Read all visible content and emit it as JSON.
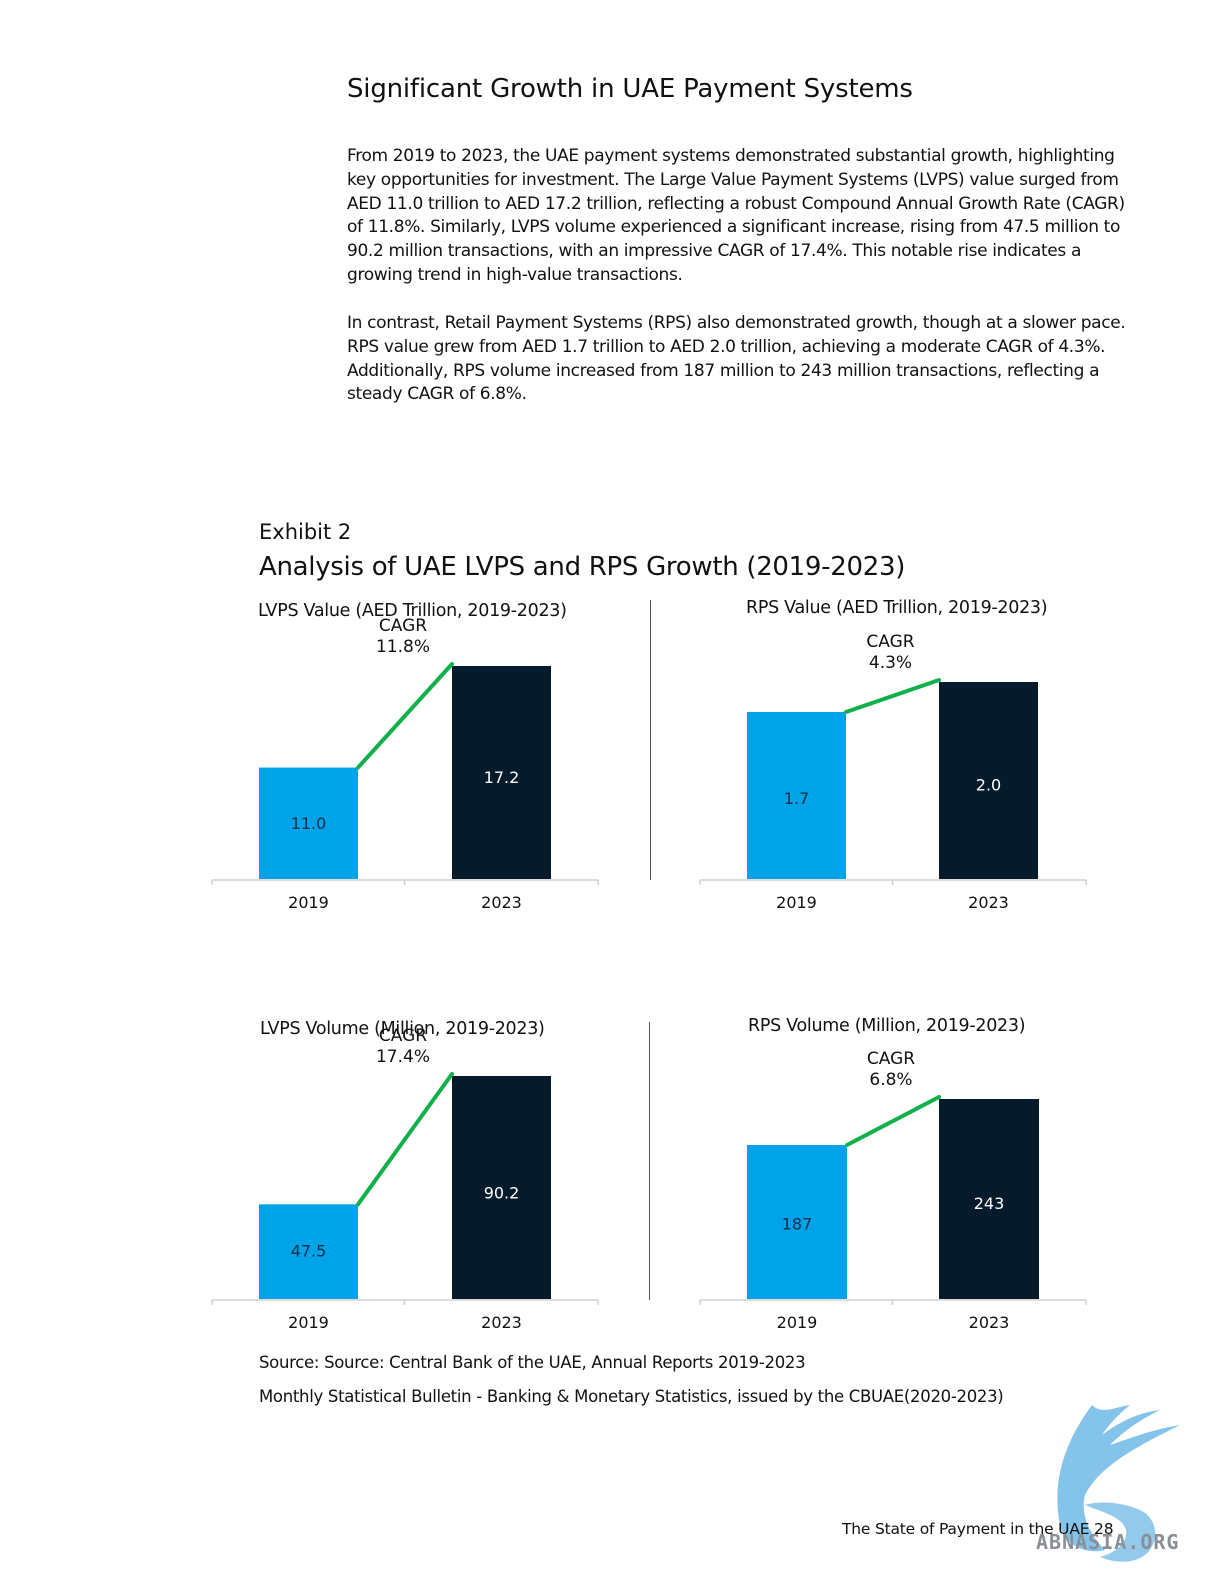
{
  "page": {
    "title": "Significant Growth in UAE Payment Systems",
    "paragraph1": "From 2019 to 2023, the UAE payment systems demonstrated substantial growth, highlighting key opportunities for investment. The Large Value Payment Systems (LVPS) value surged from AED 11.0 trillion to AED 17.2 trillion, reflecting a robust Compound Annual Growth Rate (CAGR) of 11.8%. Similarly, LVPS volume experienced a significant increase, rising from 47.5 million to 90.2 million transactions, with an impressive CAGR of 17.4%. This notable rise indicates a growing trend in high-value transactions.",
    "paragraph2": "In contrast, Retail Payment Systems (RPS) also demonstrated growth, though at a slower pace. RPS value grew from AED 1.7 trillion to AED 2.0 trillion, achieving a moderate CAGR of 4.3%. Additionally, RPS volume increased from 187 million to 243 million transactions, reflecting a steady CAGR of 6.8%.",
    "exhibit_label": "Exhibit 2",
    "exhibit_title": "Analysis of UAE LVPS and RPS Growth (2019-2023)",
    "source1": "Source: Source: Central Bank of the UAE, Annual Reports 2019-2023",
    "source2": "Monthly Statistical Bulletin - Banking & Monetary Statistics, issued by the CBUAE(2020-2023)",
    "footer": "The State of Payment in the UAE  28",
    "watermark_text": "ABNASIA.ORG"
  },
  "colors": {
    "bar_2019": "#00a3e8",
    "bar_2023": "#051b2c",
    "cagr_line": "#10b04a",
    "axis": "#d0d0d0"
  },
  "chart_data": [
    {
      "type": "bar",
      "title": "LVPS Value (AED Trillion, 2019-2023)",
      "categories": [
        "2019",
        "2023"
      ],
      "values": [
        11.0,
        17.2
      ],
      "labels": [
        "11.0",
        "17.2"
      ],
      "annotation": "CAGR",
      "cagr": "11.8%",
      "ylim": [
        0,
        17.2
      ]
    },
    {
      "type": "bar",
      "title": "RPS Value (AED Trillion, 2019-2023)",
      "categories": [
        "2019",
        "2023"
      ],
      "values": [
        1.7,
        2.0
      ],
      "labels": [
        "1.7",
        "2.0"
      ],
      "annotation": "CAGR",
      "cagr": "4.3%",
      "ylim": [
        0,
        2.0
      ]
    },
    {
      "type": "bar",
      "title": "LVPS Volume (Million, 2019-2023)",
      "categories": [
        "2019",
        "2023"
      ],
      "values": [
        47.5,
        90.2
      ],
      "labels": [
        "47.5",
        "90.2"
      ],
      "annotation": "CAGR",
      "cagr": "17.4%",
      "ylim": [
        0,
        90.2
      ]
    },
    {
      "type": "bar",
      "title": "RPS Volume (Million, 2019-2023)",
      "categories": [
        "2019",
        "2023"
      ],
      "values": [
        187,
        243
      ],
      "labels": [
        "187",
        "243"
      ],
      "annotation": "CAGR",
      "cagr": "6.8%",
      "ylim": [
        0,
        243
      ]
    }
  ]
}
